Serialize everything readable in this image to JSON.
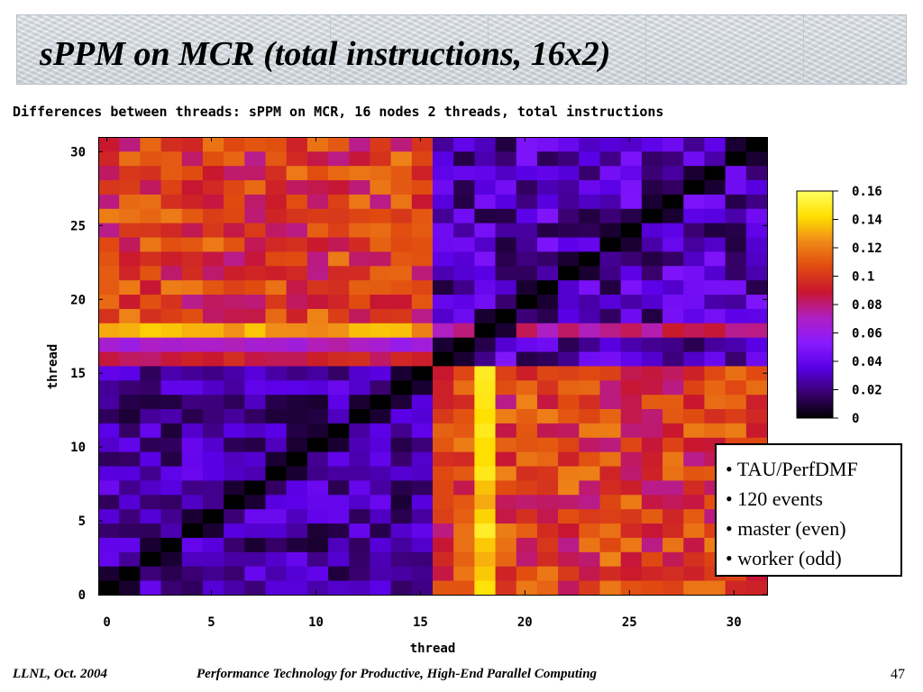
{
  "slide": {
    "title": "sPPM on MCR (total instructions, 16x2)",
    "footer_left": "LLNL, Oct. 2004",
    "footer_center": "Performance Technology for Productive, High-End Parallel Computing",
    "page_number": "47"
  },
  "bullets": [
    "• TAU/PerfDMF",
    "• 120 events",
    "• master (even)",
    "• worker (odd)"
  ],
  "chart_data": {
    "type": "heatmap",
    "title": "Differences between threads: sPPM on MCR, 16 nodes 2 threads, total instructions",
    "xlabel": "thread",
    "ylabel": "thread",
    "x_ticks": [
      "0",
      "5",
      "10",
      "15",
      "20",
      "25",
      "30"
    ],
    "y_ticks": [
      "0",
      "5",
      "10",
      "15",
      "20",
      "25",
      "30"
    ],
    "xlim": [
      0,
      31
    ],
    "ylim": [
      0,
      31
    ],
    "colorbar": {
      "ticks": [
        "0",
        "0.02",
        "0.04",
        "0.06",
        "0.08",
        "0.1",
        "0.12",
        "0.14",
        "0.16"
      ],
      "range": [
        0,
        0.16
      ],
      "colors": [
        "#000000",
        "#3a0070",
        "#5a00e6",
        "#8a1aff",
        "#b01fc0",
        "#c8162e",
        "#e04b10",
        "#f08a18",
        "#ffe000",
        "#ffff60"
      ]
    },
    "grid": false,
    "legend": "colorbar-right",
    "block_values": {
      "master_vs_master": 0.025,
      "worker_vs_worker": 0.03,
      "master_vs_worker": 0.1,
      "diagonal": 0
    },
    "highlights": [
      {
        "row": 18,
        "cols": "0-15",
        "value": 0.13
      },
      {
        "col": 18,
        "rows": "0-15",
        "value": 0.14
      },
      {
        "row": 18,
        "cols": "16-31",
        "value": 0.08
      },
      {
        "row": 17,
        "cols": "0-15",
        "value": 0.065
      },
      {
        "row": 16,
        "cols": "0-15",
        "value": 0.09
      }
    ]
  }
}
